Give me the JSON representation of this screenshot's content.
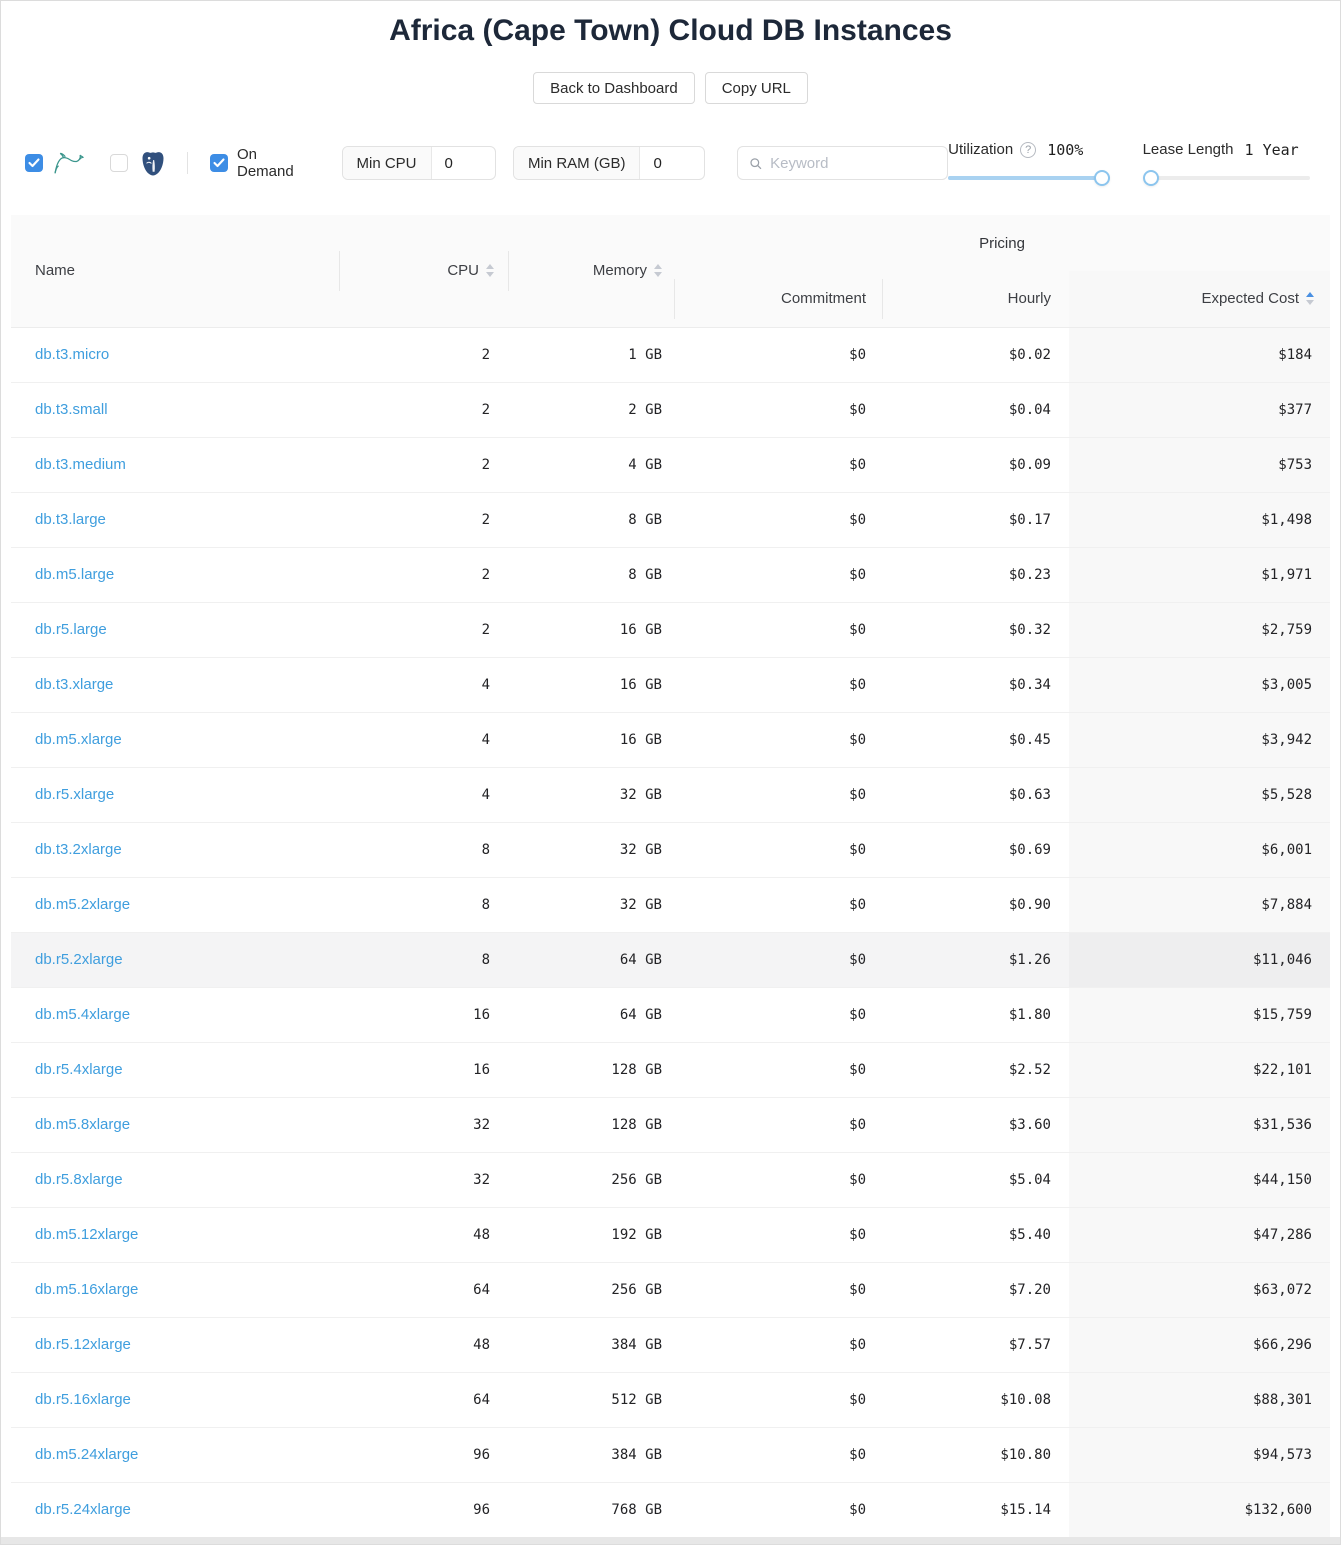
{
  "header": {
    "title": "Africa (Cape Town) Cloud DB Instances",
    "back_button": "Back to Dashboard",
    "copy_url_button": "Copy URL"
  },
  "filters": {
    "mysql_checkbox": {
      "checked": true,
      "icon": "mysql-dolphin"
    },
    "postgres_checkbox": {
      "checked": false,
      "icon": "postgres-elephant"
    },
    "on_demand": {
      "label": "On Demand",
      "checked": true
    },
    "min_cpu": {
      "label": "Min CPU",
      "value": "0"
    },
    "min_ram": {
      "label": "Min RAM (GB)",
      "value": "0"
    },
    "keyword": {
      "placeholder": "Keyword",
      "value": "",
      "icon": "search"
    },
    "utilization": {
      "label": "Utilization",
      "display": "100%",
      "percent": 100,
      "help_icon": "question-circle"
    },
    "lease_length": {
      "label": "Lease Length",
      "display": "1 Year",
      "percent": 0
    }
  },
  "table": {
    "pricing_group": "Pricing",
    "columns": {
      "name": "Name",
      "cpu": "CPU",
      "memory": "Memory",
      "commitment": "Commitment",
      "hourly": "Hourly",
      "expected": "Expected Cost"
    },
    "sort": {
      "column": "expected",
      "direction": "asc"
    },
    "rows": [
      {
        "name": "db.t3.micro",
        "cpu": "2",
        "memory": "1 GB",
        "commitment": "$0",
        "hourly": "$0.02",
        "expected": "$184"
      },
      {
        "name": "db.t3.small",
        "cpu": "2",
        "memory": "2 GB",
        "commitment": "$0",
        "hourly": "$0.04",
        "expected": "$377"
      },
      {
        "name": "db.t3.medium",
        "cpu": "2",
        "memory": "4 GB",
        "commitment": "$0",
        "hourly": "$0.09",
        "expected": "$753"
      },
      {
        "name": "db.t3.large",
        "cpu": "2",
        "memory": "8 GB",
        "commitment": "$0",
        "hourly": "$0.17",
        "expected": "$1,498"
      },
      {
        "name": "db.m5.large",
        "cpu": "2",
        "memory": "8 GB",
        "commitment": "$0",
        "hourly": "$0.23",
        "expected": "$1,971"
      },
      {
        "name": "db.r5.large",
        "cpu": "2",
        "memory": "16 GB",
        "commitment": "$0",
        "hourly": "$0.32",
        "expected": "$2,759"
      },
      {
        "name": "db.t3.xlarge",
        "cpu": "4",
        "memory": "16 GB",
        "commitment": "$0",
        "hourly": "$0.34",
        "expected": "$3,005"
      },
      {
        "name": "db.m5.xlarge",
        "cpu": "4",
        "memory": "16 GB",
        "commitment": "$0",
        "hourly": "$0.45",
        "expected": "$3,942"
      },
      {
        "name": "db.r5.xlarge",
        "cpu": "4",
        "memory": "32 GB",
        "commitment": "$0",
        "hourly": "$0.63",
        "expected": "$5,528"
      },
      {
        "name": "db.t3.2xlarge",
        "cpu": "8",
        "memory": "32 GB",
        "commitment": "$0",
        "hourly": "$0.69",
        "expected": "$6,001"
      },
      {
        "name": "db.m5.2xlarge",
        "cpu": "8",
        "memory": "32 GB",
        "commitment": "$0",
        "hourly": "$0.90",
        "expected": "$7,884"
      },
      {
        "name": "db.r5.2xlarge",
        "cpu": "8",
        "memory": "64 GB",
        "commitment": "$0",
        "hourly": "$1.26",
        "expected": "$11,046",
        "highlighted": true
      },
      {
        "name": "db.m5.4xlarge",
        "cpu": "16",
        "memory": "64 GB",
        "commitment": "$0",
        "hourly": "$1.80",
        "expected": "$15,759"
      },
      {
        "name": "db.r5.4xlarge",
        "cpu": "16",
        "memory": "128 GB",
        "commitment": "$0",
        "hourly": "$2.52",
        "expected": "$22,101"
      },
      {
        "name": "db.m5.8xlarge",
        "cpu": "32",
        "memory": "128 GB",
        "commitment": "$0",
        "hourly": "$3.60",
        "expected": "$31,536"
      },
      {
        "name": "db.r5.8xlarge",
        "cpu": "32",
        "memory": "256 GB",
        "commitment": "$0",
        "hourly": "$5.04",
        "expected": "$44,150"
      },
      {
        "name": "db.m5.12xlarge",
        "cpu": "48",
        "memory": "192 GB",
        "commitment": "$0",
        "hourly": "$5.40",
        "expected": "$47,286"
      },
      {
        "name": "db.m5.16xlarge",
        "cpu": "64",
        "memory": "256 GB",
        "commitment": "$0",
        "hourly": "$7.20",
        "expected": "$63,072"
      },
      {
        "name": "db.r5.12xlarge",
        "cpu": "48",
        "memory": "384 GB",
        "commitment": "$0",
        "hourly": "$7.57",
        "expected": "$66,296"
      },
      {
        "name": "db.r5.16xlarge",
        "cpu": "64",
        "memory": "512 GB",
        "commitment": "$0",
        "hourly": "$10.08",
        "expected": "$88,301"
      },
      {
        "name": "db.m5.24xlarge",
        "cpu": "96",
        "memory": "384 GB",
        "commitment": "$0",
        "hourly": "$10.80",
        "expected": "$94,573"
      },
      {
        "name": "db.r5.24xlarge",
        "cpu": "96",
        "memory": "768 GB",
        "commitment": "$0",
        "hourly": "$15.14",
        "expected": "$132,600"
      }
    ]
  },
  "colors": {
    "checkbox_blue": "#3d8de5",
    "link_blue": "#3f9ede",
    "sort_active_blue": "#4a90e2",
    "slider_fill_blue": "#a9d2f1",
    "title_navy": "#1d2839"
  }
}
